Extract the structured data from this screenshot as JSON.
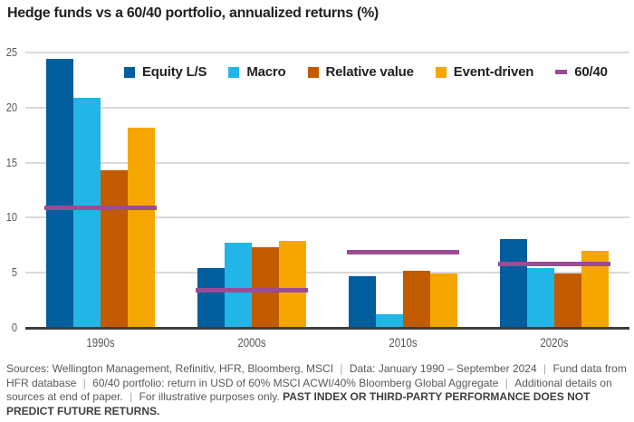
{
  "title": "Hedge funds vs a 60/40 portfolio, annualized returns (%)",
  "chart_data": {
    "type": "bar",
    "title": "Hedge funds vs a 60/40 portfolio, annualized returns (%)",
    "categories": [
      "1990s",
      "2000s",
      "2010s",
      "2020s"
    ],
    "series": [
      {
        "name": "Equity L/S",
        "color": "#005E9E",
        "values": [
          24.4,
          5.4,
          4.7,
          8.1
        ]
      },
      {
        "name": "Macro",
        "color": "#22B5E8",
        "values": [
          20.9,
          7.7,
          1.2,
          5.4
        ]
      },
      {
        "name": "Relative value",
        "color": "#C25B00",
        "values": [
          14.3,
          7.3,
          5.2,
          4.9
        ]
      },
      {
        "name": "Event-driven",
        "color": "#F5A700",
        "values": [
          18.2,
          7.9,
          4.9,
          7.0
        ]
      }
    ],
    "line_series": {
      "name": "60/40",
      "color": "#9C4C94",
      "marker": "dash",
      "values": [
        10.9,
        3.4,
        6.9,
        5.8
      ]
    },
    "xlabel": "",
    "ylabel": "",
    "ylim": [
      0,
      25
    ],
    "yticks": [
      0,
      5,
      10,
      15,
      20,
      25
    ],
    "grid": "horizontal",
    "legend_position": "top-inside"
  },
  "footer": {
    "separator": "|",
    "segments": [
      "Sources: Wellington Management, Refinitiv, HFR, Bloomberg, MSCI",
      "Data: January 1990 – September 2024",
      "Fund data from HFR database",
      "60/40 portfolio: return in USD of 60% MSCI ACWI/40% Bloomberg Global Aggregate",
      "Additional details on sources at end of paper.",
      "For illustrative purposes only."
    ],
    "disclaimer_bold": "PAST INDEX OR THIRD-PARTY PERFORMANCE DOES NOT PREDICT FUTURE RETURNS."
  },
  "colors": {
    "grid": "#d9d9d9",
    "axis": "#3d3d3d",
    "tick_label": "#55565a",
    "title_text": "#231f20",
    "footer_text": "#58595b"
  }
}
